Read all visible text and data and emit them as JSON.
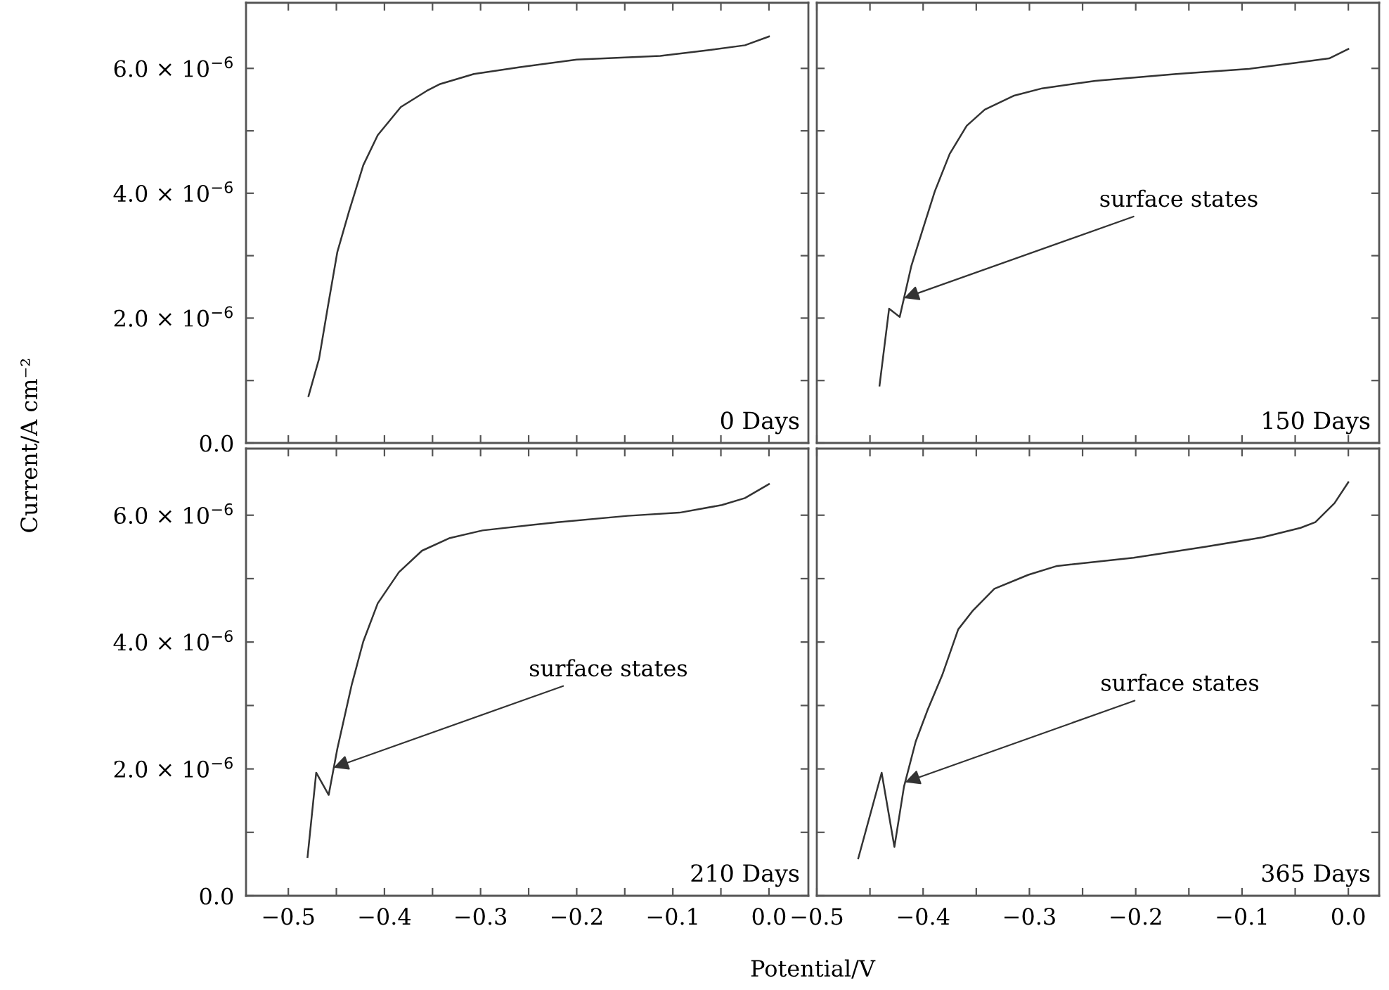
{
  "chart_data": [
    {
      "type": "line",
      "ylabel": "Current/A cm⁻²",
      "color": "#333333",
      "tick_labels": "y",
      "xlim": [
        -0.544,
        0.041
      ],
      "ylim": [
        0,
        7.05e-06
      ],
      "xticks": [
        {
          "value": -0.5,
          "label": null
        },
        {
          "value": -0.45,
          "label": null
        },
        {
          "value": -0.4,
          "label": null
        },
        {
          "value": -0.35,
          "label": null
        },
        {
          "value": -0.3,
          "label": null
        },
        {
          "value": -0.25,
          "label": null
        },
        {
          "value": -0.2,
          "label": null
        },
        {
          "value": -0.15,
          "label": null
        },
        {
          "value": -0.1,
          "label": null
        },
        {
          "value": -0.05,
          "label": null
        },
        {
          "value": 0,
          "label": null
        }
      ],
      "yticks": [
        {
          "value": 0,
          "label": "0.0"
        },
        {
          "value": 1e-06,
          "label": null
        },
        {
          "value": 2e-06,
          "label": "2.0 × 10$^{−6}$"
        },
        {
          "value": 3e-06,
          "label": null
        },
        {
          "value": 4e-06,
          "label": "4.0 × 10$^{−6}$"
        },
        {
          "value": 5e-06,
          "label": null
        },
        {
          "value": 6e-06,
          "label": "6.0 × 10$^{−6}$"
        }
      ],
      "x": [
        -0.479,
        -0.468,
        -0.459,
        -0.449,
        -0.437,
        -0.422,
        -0.407,
        -0.383,
        -0.356,
        -0.342,
        -0.307,
        -0.259,
        -0.2,
        -0.113,
        -0.064,
        -0.025,
        0.0
      ],
      "values": [
        7.5e-07,
        1.35e-06,
        2.17e-06,
        3.06e-06,
        3.7e-06,
        4.45e-06,
        4.93e-06,
        5.38e-06,
        5.64e-06,
        5.75e-06,
        5.91e-06,
        6.02e-06,
        6.14e-06,
        6.2e-06,
        6.29e-06,
        6.37e-06,
        6.51e-06
      ],
      "annotations": [
        "0 Days"
      ]
    },
    {
      "type": "line",
      "color": "#333333",
      "tick_labels": false,
      "xlim": [
        -0.5,
        0.029
      ],
      "ylim": [
        0,
        7.05e-06
      ],
      "xticks": [
        {
          "value": -0.5,
          "label": null
        },
        {
          "value": -0.45,
          "label": null
        },
        {
          "value": -0.4,
          "label": null
        },
        {
          "value": -0.35,
          "label": null
        },
        {
          "value": -0.3,
          "label": null
        },
        {
          "value": -0.25,
          "label": null
        },
        {
          "value": -0.2,
          "label": null
        },
        {
          "value": -0.15,
          "label": null
        },
        {
          "value": -0.1,
          "label": null
        },
        {
          "value": -0.05,
          "label": null
        },
        {
          "value": 0,
          "label": null
        }
      ],
      "yticks": [
        {
          "value": 0,
          "label": null
        },
        {
          "value": 1e-06,
          "label": null
        },
        {
          "value": 2e-06,
          "label": null
        },
        {
          "value": 3e-06,
          "label": null
        },
        {
          "value": 4e-06,
          "label": null
        },
        {
          "value": 5e-06,
          "label": null
        },
        {
          "value": 6e-06,
          "label": null
        }
      ],
      "x": [
        -0.441,
        -0.432,
        -0.422,
        -0.411,
        -0.4,
        -0.389,
        -0.375,
        -0.359,
        -0.342,
        -0.315,
        -0.288,
        -0.238,
        -0.162,
        -0.094,
        -0.049,
        -0.018,
        0.0
      ],
      "values": [
        9.2e-07,
        2.15e-06,
        2.02e-06,
        2.84e-06,
        3.44e-06,
        4.03e-06,
        4.63e-06,
        5.08e-06,
        5.34e-06,
        5.56e-06,
        5.68e-06,
        5.8e-06,
        5.91e-06,
        5.99e-06,
        6.09e-06,
        6.16e-06,
        6.31e-06
      ],
      "annotations": [
        "150 Days",
        {
          "text": "surface states",
          "x": -0.418,
          "y": 2.32e-06
        }
      ]
    },
    {
      "type": "line",
      "xlabel": "Potential/V",
      "color": "#333333",
      "xlim": [
        -0.544,
        0.041
      ],
      "ylim": [
        0,
        7.05e-06
      ],
      "xticks": [
        {
          "value": -0.5,
          "label": "−0.5"
        },
        {
          "value": -0.45,
          "label": null
        },
        {
          "value": -0.4,
          "label": "−0.4"
        },
        {
          "value": -0.35,
          "label": null
        },
        {
          "value": -0.3,
          "label": "−0.3"
        },
        {
          "value": -0.25,
          "label": null
        },
        {
          "value": -0.2,
          "label": "−0.2"
        },
        {
          "value": -0.15,
          "label": null
        },
        {
          "value": -0.1,
          "label": "−0.1"
        },
        {
          "value": -0.05,
          "label": null
        },
        {
          "value": 0,
          "label": "0.0"
        }
      ],
      "yticks": [
        {
          "value": 0,
          "label": "0.0"
        },
        {
          "value": 1e-06,
          "label": null
        },
        {
          "value": 2e-06,
          "label": "2.0 × 10$^{−6}$"
        },
        {
          "value": 3e-06,
          "label": null
        },
        {
          "value": 4e-06,
          "label": "4.0 × 10$^{−6}$"
        },
        {
          "value": 5e-06,
          "label": null
        },
        {
          "value": 6e-06,
          "label": "6.0 × 10$^{−6}$"
        }
      ],
      "x": [
        -0.48,
        -0.471,
        -0.458,
        -0.449,
        -0.434,
        -0.422,
        -0.407,
        -0.385,
        -0.361,
        -0.332,
        -0.298,
        -0.22,
        -0.147,
        -0.093,
        -0.049,
        -0.025,
        0.0
      ],
      "values": [
        6.1e-07,
        1.94e-06,
        1.59e-06,
        2.32e-06,
        3.33e-06,
        4.01e-06,
        4.61e-06,
        5.1e-06,
        5.44e-06,
        5.64e-06,
        5.76e-06,
        5.89e-06,
        5.99e-06,
        6.04e-06,
        6.16e-06,
        6.27e-06,
        6.49e-06
      ],
      "annotations": [
        "210 Days",
        {
          "text": "surface states",
          "x": -0.453,
          "y": 2.02e-06
        }
      ]
    },
    {
      "type": "line",
      "color": "#333333",
      "tick_labels": "x",
      "xlim": [
        -0.5,
        0.029
      ],
      "ylim": [
        0,
        7.05e-06
      ],
      "xticks": [
        {
          "value": -0.5,
          "label": "−0.5"
        },
        {
          "value": -0.45,
          "label": null
        },
        {
          "value": -0.4,
          "label": "−0.4"
        },
        {
          "value": -0.35,
          "label": null
        },
        {
          "value": -0.3,
          "label": "−0.3"
        },
        {
          "value": -0.25,
          "label": null
        },
        {
          "value": -0.2,
          "label": "−0.2"
        },
        {
          "value": -0.15,
          "label": null
        },
        {
          "value": -0.1,
          "label": "−0.1"
        },
        {
          "value": -0.05,
          "label": null
        },
        {
          "value": 0,
          "label": "0.0"
        }
      ],
      "yticks": [
        {
          "value": 0,
          "label": null
        },
        {
          "value": 1e-06,
          "label": null
        },
        {
          "value": 2e-06,
          "label": null
        },
        {
          "value": 3e-06,
          "label": null
        },
        {
          "value": 4e-06,
          "label": null
        },
        {
          "value": 5e-06,
          "label": null
        },
        {
          "value": 6e-06,
          "label": null
        }
      ],
      "x": [
        -0.461,
        -0.439,
        -0.427,
        -0.418,
        -0.407,
        -0.396,
        -0.382,
        -0.367,
        -0.353,
        -0.333,
        -0.301,
        -0.274,
        -0.202,
        -0.135,
        -0.081,
        -0.045,
        -0.031,
        -0.013,
        0.0
      ],
      "values": [
        5.9e-07,
        1.94e-06,
        7.7e-07,
        1.72e-06,
        2.43e-06,
        2.92e-06,
        3.48e-06,
        4.2e-06,
        4.5e-06,
        4.84e-06,
        5.06e-06,
        5.2e-06,
        5.33e-06,
        5.5e-06,
        5.65e-06,
        5.8e-06,
        5.89e-06,
        6.19e-06,
        6.52e-06
      ],
      "annotations": [
        "365 Days",
        {
          "text": "surface states",
          "x": -0.417,
          "y": 1.79e-06
        }
      ]
    }
  ]
}
